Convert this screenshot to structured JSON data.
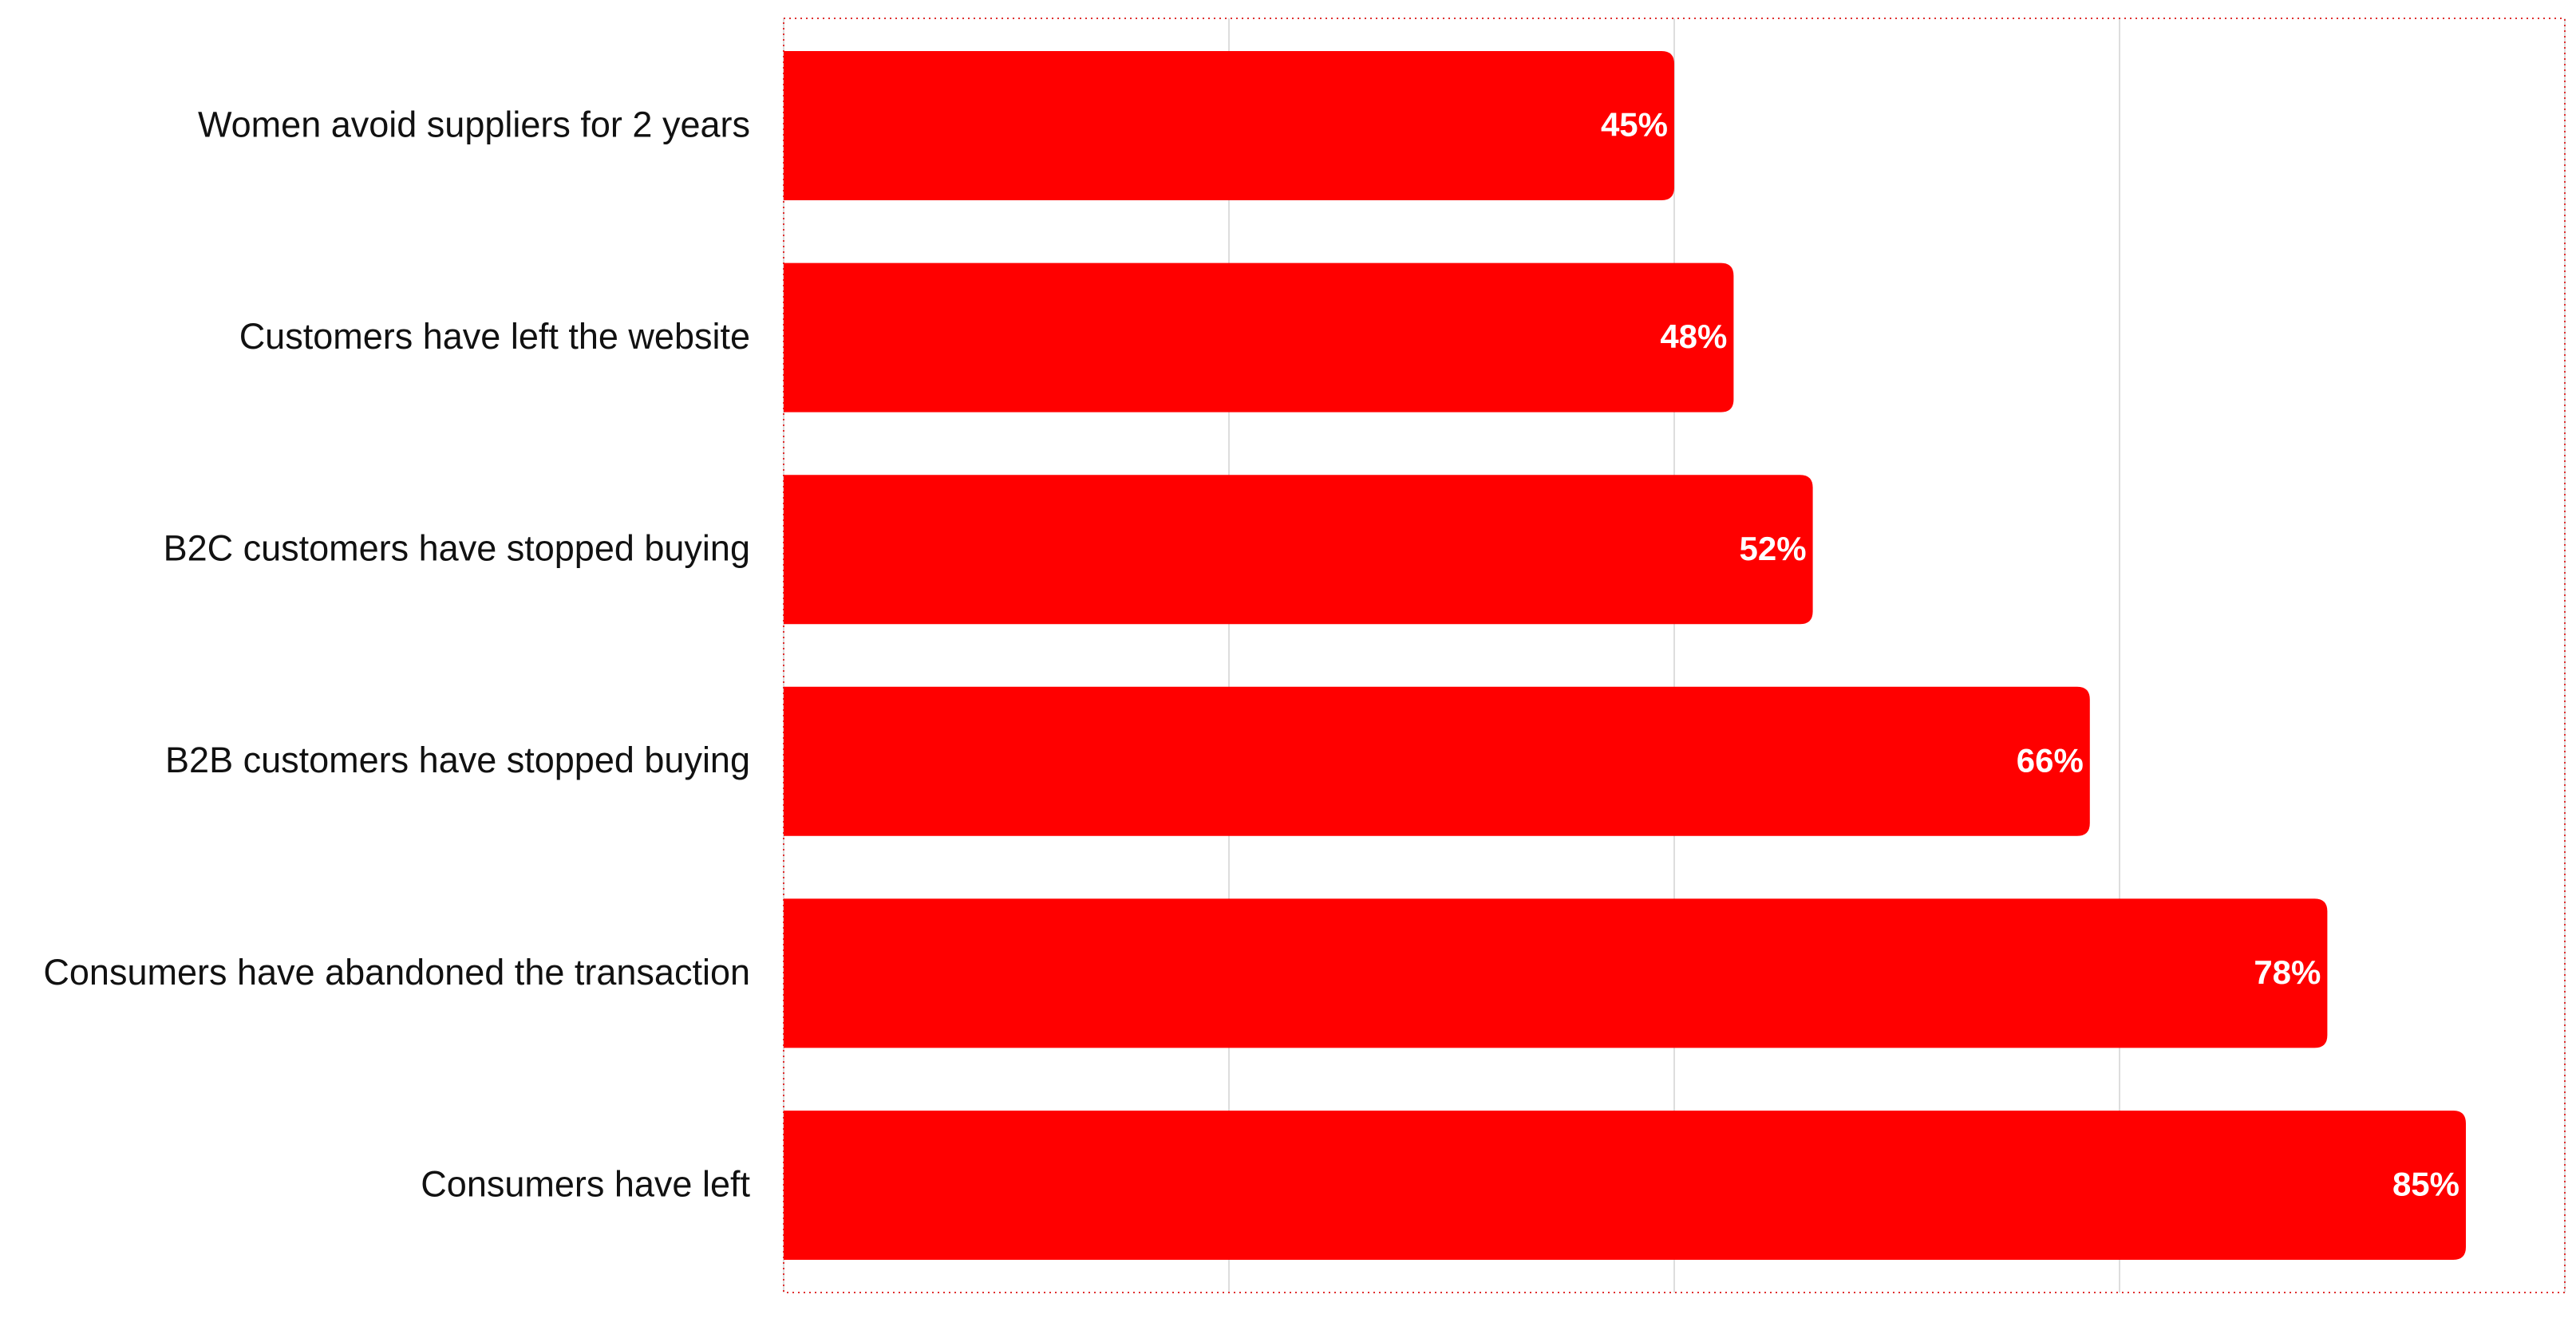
{
  "chart_data": {
    "type": "bar",
    "orientation": "horizontal",
    "categories": [
      "Women avoid suppliers for 2 years",
      "Customers have left the website",
      "B2C customers have stopped buying",
      "B2B customers have stopped buying",
      "Consumers have abandoned the transaction",
      "Consumers have left"
    ],
    "values": [
      45,
      48,
      52,
      66,
      78,
      85
    ],
    "value_labels": [
      "45%",
      "48%",
      "52%",
      "66%",
      "78%",
      "85%"
    ],
    "color": "#ff0000",
    "xlim": [
      0,
      90
    ],
    "xticks": [
      0,
      22.5,
      45,
      67.5,
      90
    ],
    "grid": true
  }
}
